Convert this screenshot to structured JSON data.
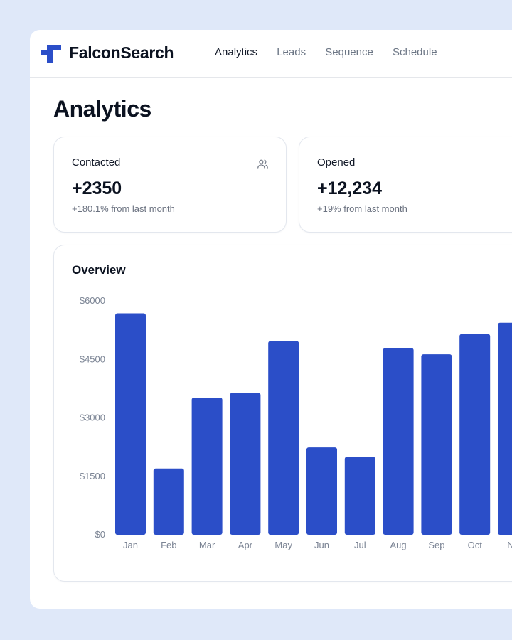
{
  "app": {
    "brand": "FalconSearch"
  },
  "nav": {
    "items": [
      "Analytics",
      "Leads",
      "Sequence",
      "Schedule"
    ],
    "active": "Analytics"
  },
  "page": {
    "title": "Analytics"
  },
  "stats": [
    {
      "label": "Contacted",
      "value": "+2350",
      "change": "+180.1% from last month",
      "icon": "users-icon"
    },
    {
      "label": "Opened",
      "value": "+12,234",
      "change": "+19% from last month",
      "icon": "credit-card-icon"
    }
  ],
  "overview": {
    "title": "Overview"
  },
  "colors": {
    "accent": "#2b4ec8",
    "background": "#dfe8f9"
  },
  "chart_data": {
    "type": "bar",
    "title": "Overview",
    "categories": [
      "Jan",
      "Feb",
      "Mar",
      "Apr",
      "May",
      "Jun",
      "Jul",
      "Aug",
      "Sep",
      "Oct",
      "Nov"
    ],
    "tick_labels": [
      "Jan",
      "Feb",
      "Mar",
      "Apr",
      "May",
      "Jun",
      "Jul",
      "Aug",
      "Sep",
      "Oct",
      "No"
    ],
    "values": [
      5680,
      1700,
      3520,
      3640,
      4970,
      2240,
      2000,
      4790,
      4630,
      5150,
      5440
    ],
    "ylim": [
      0,
      6000
    ],
    "yticks": [
      0,
      1500,
      3000,
      4500,
      6000
    ],
    "ytick_labels": [
      "$0",
      "$1500",
      "$3000",
      "$4500",
      "$6000"
    ],
    "xlabel": "",
    "ylabel": ""
  }
}
